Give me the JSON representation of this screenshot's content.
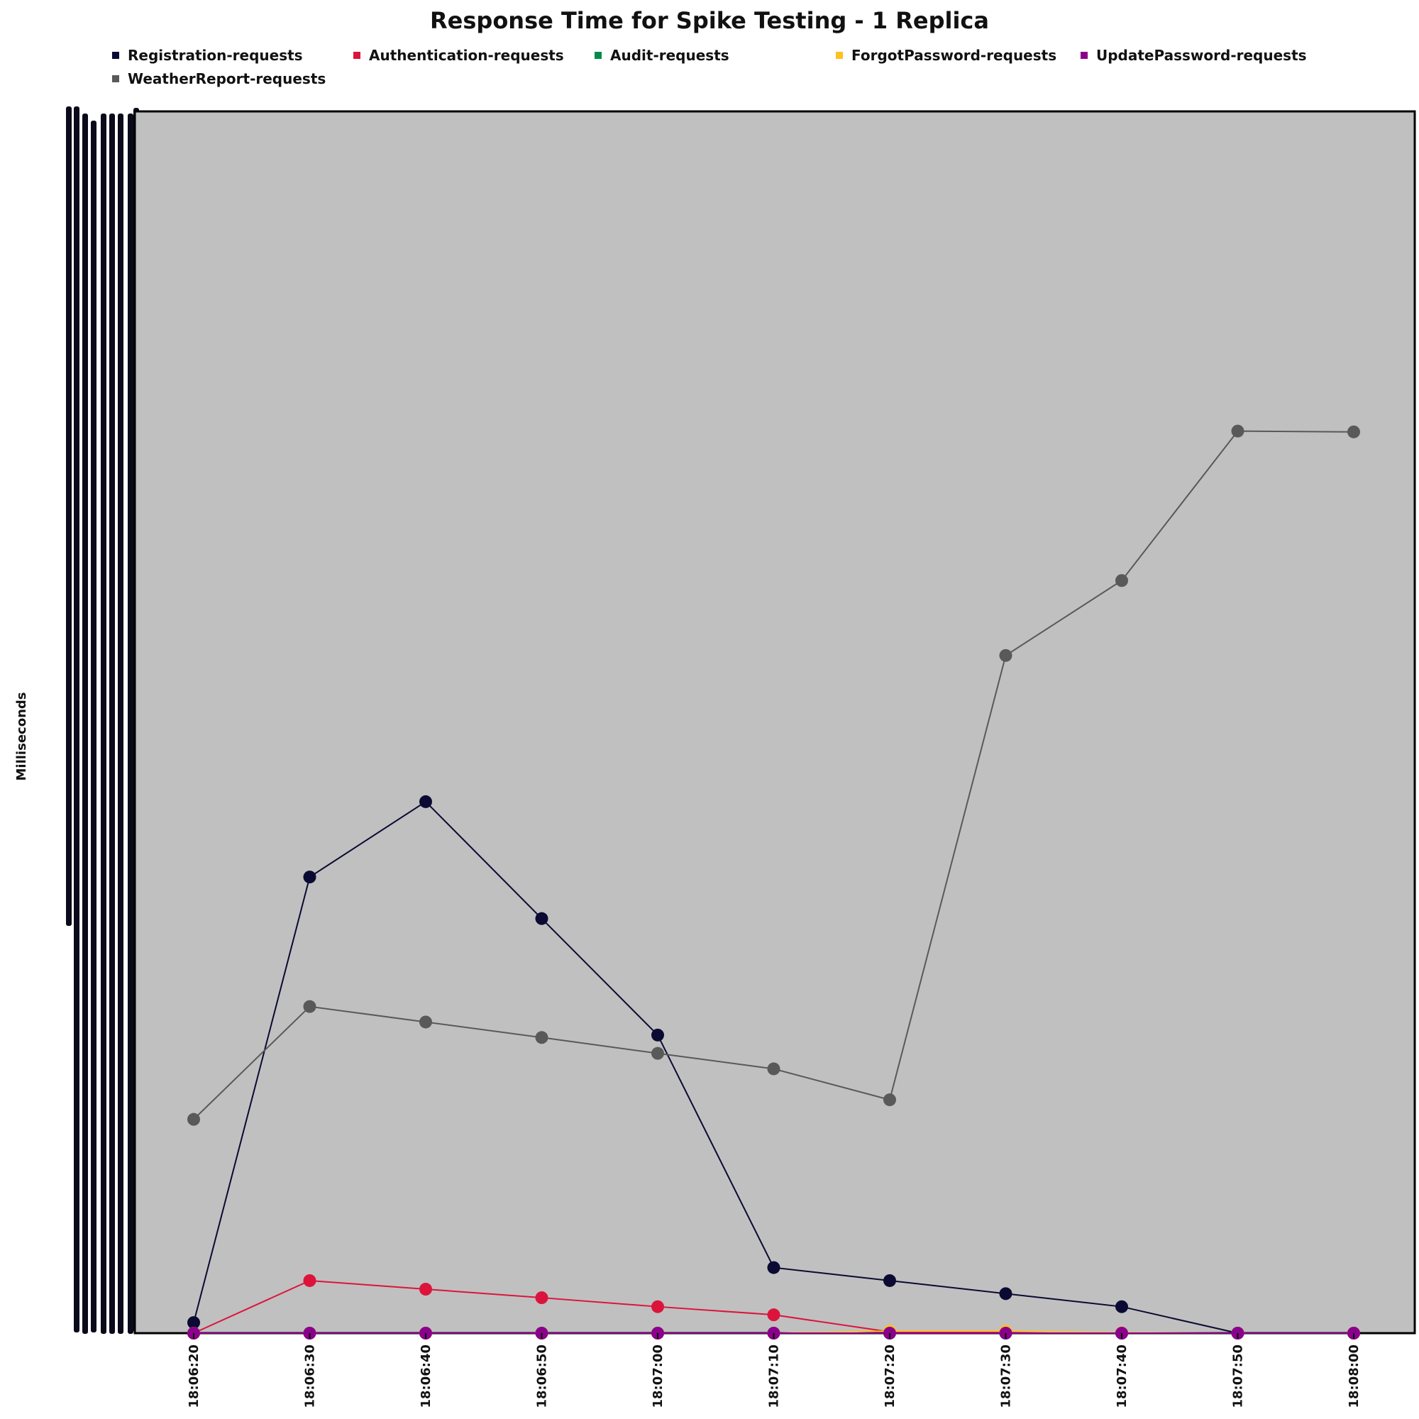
{
  "chart_data": {
    "type": "line",
    "title": "Response Time for Spike Testing - 1 Replica",
    "xlabel": "",
    "ylabel": "Milliseconds",
    "categories": [
      "18:06:20",
      "18:06:30",
      "18:06:40",
      "18:06:50",
      "18:07:00",
      "18:07:10",
      "18:07:20",
      "18:07:30",
      "18:07:40",
      "18:07:50",
      "18:08:00"
    ],
    "ylim": [
      0,
      3000
    ],
    "legend_position": "top",
    "grid": false,
    "background": "#c0c0c0",
    "series": [
      {
        "name": "Registration-requests",
        "color": "#0a0a33",
        "values": [
          26,
          1120,
          1305,
          1018,
          732,
          161,
          129,
          97,
          65,
          0,
          0
        ]
      },
      {
        "name": "Authentication-requests",
        "color": "#dc143c",
        "values": [
          0,
          129,
          108,
          87,
          65,
          45,
          3,
          3,
          0,
          0,
          0
        ]
      },
      {
        "name": "Audit-requests",
        "color": "#008b4a",
        "values": [
          0,
          0,
          0,
          0,
          0,
          0,
          0,
          0,
          0,
          0,
          0
        ]
      },
      {
        "name": "ForgotPassword-requests",
        "color": "#ffc020",
        "values": [
          0,
          0,
          0,
          0,
          0,
          0,
          5,
          5,
          1,
          0,
          0
        ]
      },
      {
        "name": "UpdatePassword-requests",
        "color": "#8b008b",
        "values": [
          0,
          0,
          0,
          0,
          0,
          0,
          0,
          0,
          0,
          0,
          0
        ]
      },
      {
        "name": "WeatherReport-requests",
        "color": "#595959",
        "values": [
          525,
          802,
          764,
          726,
          687,
          649,
          573,
          1664,
          1848,
          2215,
          2213
        ]
      }
    ]
  }
}
